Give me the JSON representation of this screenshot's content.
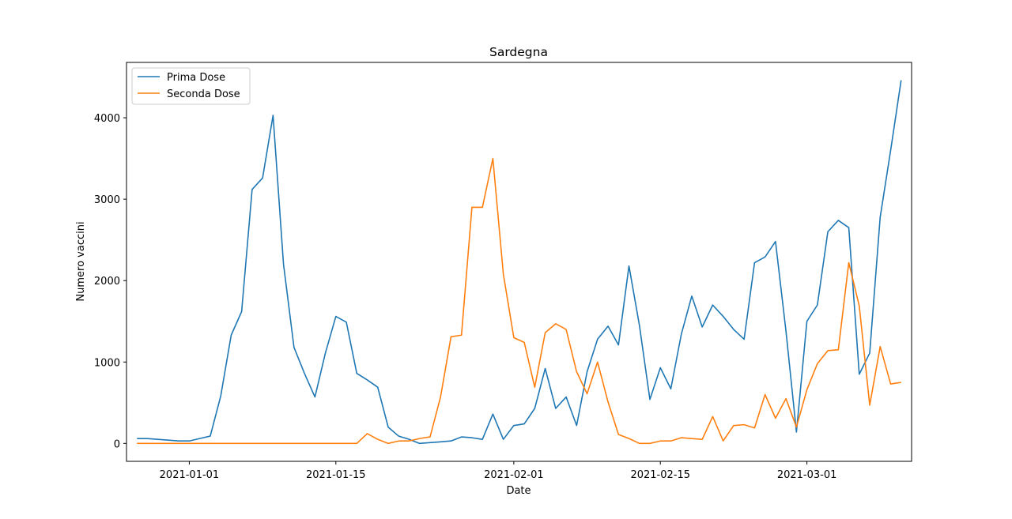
{
  "chart_data": {
    "type": "line",
    "title": "Sardegna",
    "xlabel": "Date",
    "ylabel": "Numero vaccini",
    "x_start": "2020-12-27",
    "x_step_days": 1,
    "xlim": [
      "2020-12-26",
      "2021-03-11"
    ],
    "ylim": [
      -220,
      4680
    ],
    "xticks": [
      {
        "date": "2021-01-01",
        "label": "2021-01-01"
      },
      {
        "date": "2021-01-15",
        "label": "2021-01-15"
      },
      {
        "date": "2021-02-01",
        "label": "2021-02-01"
      },
      {
        "date": "2021-02-15",
        "label": "2021-02-15"
      },
      {
        "date": "2021-03-01",
        "label": "2021-03-01"
      }
    ],
    "yticks": [
      0,
      1000,
      2000,
      3000,
      4000
    ],
    "grid": false,
    "legend_position": "top-left",
    "series": [
      {
        "name": "Prima Dose",
        "color": "#1f77b4",
        "values": [
          60,
          60,
          50,
          40,
          30,
          30,
          60,
          90,
          580,
          1330,
          1620,
          3120,
          3260,
          4030,
          2200,
          1180,
          860,
          570,
          1110,
          1560,
          1490,
          860,
          780,
          690,
          200,
          90,
          50,
          0,
          10,
          20,
          30,
          80,
          70,
          50,
          360,
          50,
          220,
          240,
          430,
          920,
          430,
          570,
          220,
          880,
          1280,
          1440,
          1210,
          2180,
          1450,
          540,
          930,
          670,
          1340,
          1810,
          1430,
          1700,
          1560,
          1400,
          1280,
          2220,
          2290,
          2480,
          1380,
          140,
          1500,
          1700,
          2600,
          2740,
          2650,
          850,
          1110,
          2780,
          3600,
          4460
        ]
      },
      {
        "name": "Seconda Dose",
        "color": "#ff7f0e",
        "values": [
          0,
          0,
          0,
          0,
          0,
          0,
          0,
          0,
          0,
          0,
          0,
          0,
          0,
          0,
          0,
          0,
          0,
          0,
          0,
          0,
          0,
          0,
          120,
          50,
          0,
          30,
          30,
          60,
          80,
          570,
          1310,
          1330,
          2900,
          2900,
          3500,
          2080,
          1300,
          1240,
          690,
          1360,
          1470,
          1400,
          880,
          610,
          1000,
          510,
          110,
          60,
          0,
          0,
          30,
          30,
          70,
          60,
          50,
          330,
          30,
          220,
          230,
          190,
          600,
          310,
          550,
          200,
          660,
          980,
          1140,
          1150,
          2220,
          1690,
          470,
          1190,
          730,
          750
        ]
      }
    ]
  }
}
